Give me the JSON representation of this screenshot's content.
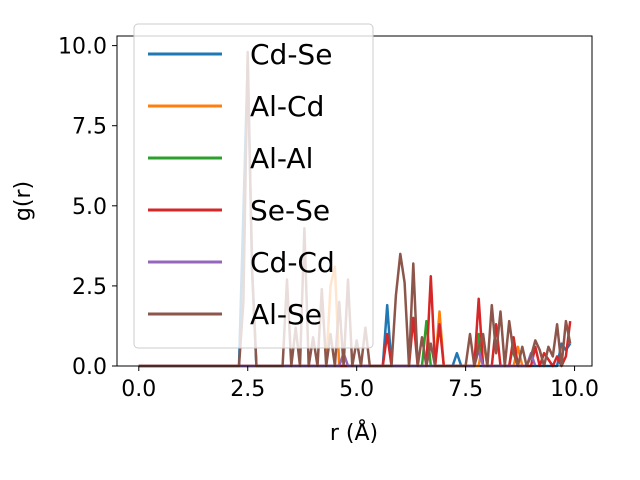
{
  "chart_data": {
    "type": "line",
    "xlabel": "r (Å)",
    "ylabel": "g(r)",
    "xlim": [
      -0.5,
      10.4
    ],
    "ylim": [
      0,
      10.3
    ],
    "xticks": [
      0.0,
      2.5,
      5.0,
      7.5,
      10.0
    ],
    "xtick_labels": [
      "0.0",
      "2.5",
      "5.0",
      "7.5",
      "10.0"
    ],
    "yticks": [
      0.0,
      2.5,
      5.0,
      7.5,
      10.0
    ],
    "ytick_labels": [
      "0.0",
      "2.5",
      "5.0",
      "7.5",
      "10.0"
    ],
    "grid": false,
    "legend_position": "upper left",
    "series": [
      {
        "name": "Cd-Se",
        "color": "#1f77b4",
        "x": [
          0,
          2.3,
          2.5,
          2.6,
          2.7,
          5.6,
          5.7,
          5.8,
          7.2,
          7.3,
          7.4,
          9.6,
          9.7,
          9.8,
          9.9
        ],
        "y": [
          0,
          0,
          9.5,
          3.0,
          0,
          0,
          1.9,
          0,
          0,
          0.4,
          0,
          0,
          0.7,
          0.5,
          0.7
        ]
      },
      {
        "name": "Al-Cd",
        "color": "#ff7f0e",
        "x": [
          0,
          4.3,
          4.4,
          4.5,
          4.6,
          6.8,
          6.9,
          7.0,
          7.8,
          7.9,
          8.0,
          8.6,
          8.7,
          8.8
        ],
        "y": [
          0,
          0,
          2.5,
          3.1,
          0,
          0,
          1.7,
          0,
          0,
          0.8,
          0,
          0,
          0.6,
          0
        ]
      },
      {
        "name": "Al-Al",
        "color": "#2ca02c",
        "x": [
          0,
          6.5,
          6.6,
          6.7,
          7.7,
          7.8,
          7.9,
          8.5,
          8.6,
          8.7
        ],
        "y": [
          0,
          0,
          1.4,
          0,
          0,
          1.0,
          0,
          0,
          0.7,
          0
        ]
      },
      {
        "name": "Se-Se",
        "color": "#d62728",
        "x": [
          0,
          5.6,
          5.7,
          5.8,
          6.2,
          6.3,
          6.4,
          6.6,
          6.7,
          6.8,
          6.9,
          7.0,
          7.7,
          7.8,
          7.9,
          8.1,
          8.2,
          8.3,
          8.5,
          8.6,
          8.7,
          9.0,
          9.1,
          9.2,
          9.3,
          9.5,
          9.6,
          9.7,
          9.8,
          9.9
        ],
        "y": [
          0,
          0,
          1.0,
          0,
          0,
          1.5,
          0,
          0,
          2.8,
          0,
          1.3,
          0,
          0,
          2.1,
          0,
          0,
          1.3,
          0,
          0,
          0.9,
          0,
          0,
          0.6,
          0,
          0.4,
          0,
          0.3,
          0,
          0.3,
          1.4
        ]
      },
      {
        "name": "Cd-Cd",
        "color": "#9467bd",
        "x": [
          0,
          4.6,
          4.7,
          4.8,
          7.7,
          7.8,
          7.9,
          8.9,
          9.0,
          9.1
        ],
        "y": [
          0,
          0,
          0.4,
          0,
          0,
          0.5,
          0,
          0,
          0.4,
          0
        ]
      },
      {
        "name": "Al-Se",
        "color": "#8c564b",
        "x": [
          0,
          2.3,
          2.4,
          2.5,
          2.6,
          2.7,
          3.3,
          3.4,
          3.5,
          3.6,
          3.7,
          3.8,
          3.9,
          4.0,
          4.1,
          4.2,
          4.3,
          4.4,
          4.5,
          4.6,
          4.7,
          4.8,
          4.9,
          5.0,
          5.1,
          5.2,
          5.3,
          5.8,
          5.9,
          6.0,
          6.1,
          6.2,
          6.3,
          6.4,
          6.5,
          6.6,
          6.7,
          6.8,
          7.5,
          7.6,
          7.7,
          7.8,
          7.9,
          8.0,
          8.1,
          8.2,
          8.3,
          8.4,
          8.5,
          8.6,
          8.7,
          8.8,
          8.9,
          9.0,
          9.1,
          9.2,
          9.3,
          9.4,
          9.5,
          9.6,
          9.7,
          9.8,
          9.9
        ],
        "y": [
          0,
          0,
          2.0,
          9.8,
          3.0,
          0,
          0,
          2.7,
          0,
          1.2,
          0,
          4.3,
          0,
          0.9,
          0,
          2.4,
          0,
          1.0,
          0,
          2.0,
          0,
          2.7,
          0,
          0.8,
          0,
          1.2,
          0,
          0,
          2.2,
          3.5,
          2.6,
          0,
          3.2,
          0,
          0.9,
          0,
          0.7,
          0,
          0,
          1.0,
          0,
          0.6,
          1.0,
          0,
          1.9,
          0.4,
          1.7,
          0,
          1.4,
          0.4,
          0,
          0.6,
          0,
          0.3,
          0.8,
          0.5,
          0,
          0.6,
          0.3,
          1.3,
          0,
          1.4,
          0.7
        ]
      }
    ]
  }
}
